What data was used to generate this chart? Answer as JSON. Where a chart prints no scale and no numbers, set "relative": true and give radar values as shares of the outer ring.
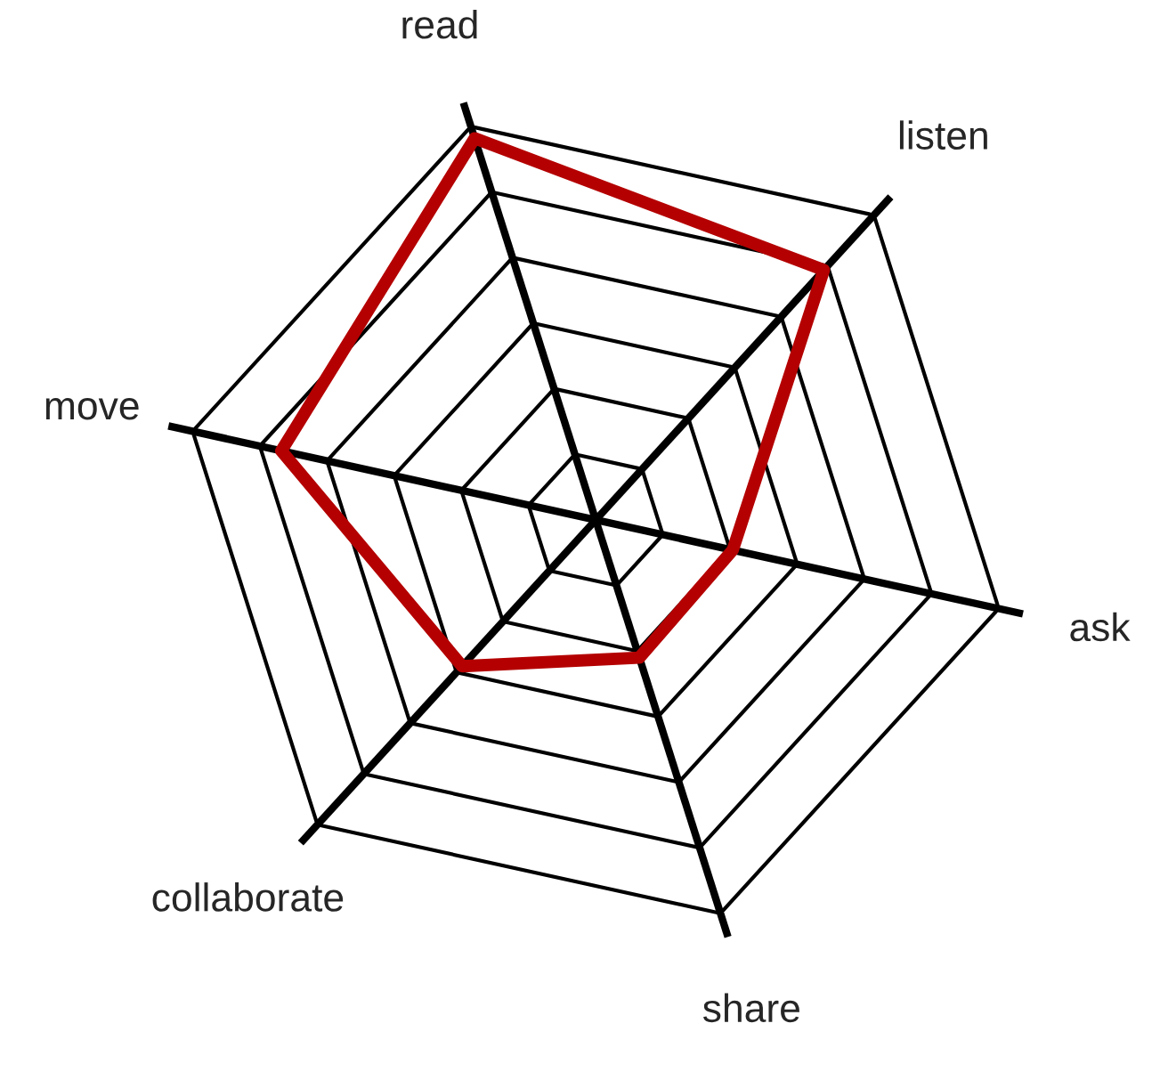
{
  "chart_data": {
    "type": "radar",
    "relative": true,
    "categories": [
      "read",
      "listen",
      "ask",
      "share",
      "collaborate",
      "move"
    ],
    "series": [
      {
        "color": "#b40000",
        "values": [
          0.97,
          0.82,
          0.34,
          0.35,
          0.48,
          0.78
        ]
      }
    ]
  }
}
